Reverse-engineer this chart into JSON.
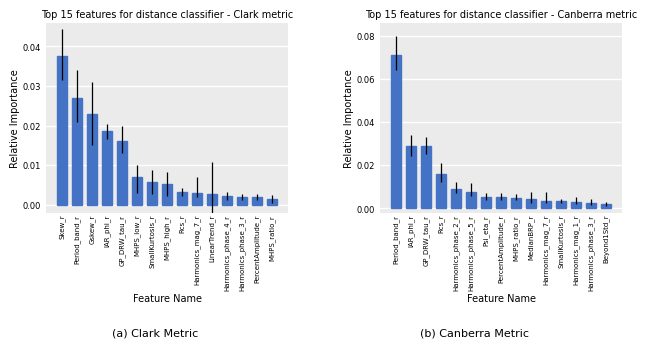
{
  "clark": {
    "title": "Top 15 features for distance classifier - Clark metric",
    "xlabel": "Feature Name",
    "ylabel": "Relative Importance",
    "categories": [
      "Skew_r",
      "Period_band_r",
      "Gskew_r",
      "IAR_phi_r",
      "GP_DRW_tau_r",
      "MHPS_low_r",
      "SmallKurtosis_r",
      "MHPS_high_r",
      "Rcs_r",
      "Harmonics_mag_7_r",
      "LinearTrend_r",
      "Harmonics_phase_4_r",
      "Harmonics_phase_3_r",
      "PercentAmplitude_r",
      "MHPS_ratio_r"
    ],
    "values": [
      0.0375,
      0.027,
      0.023,
      0.0185,
      0.016,
      0.007,
      0.0058,
      0.0052,
      0.0033,
      0.003,
      0.0028,
      0.0022,
      0.002,
      0.002,
      0.0015
    ],
    "yerr_lower": [
      0.006,
      0.006,
      0.008,
      0.002,
      0.003,
      0.004,
      0.003,
      0.003,
      0.001,
      0.001,
      0.009,
      0.001,
      0.0008,
      0.0008,
      0.001
    ],
    "yerr_upper": [
      0.007,
      0.007,
      0.008,
      0.002,
      0.004,
      0.003,
      0.003,
      0.003,
      0.001,
      0.004,
      0.008,
      0.001,
      0.0008,
      0.0008,
      0.001
    ],
    "ylim": [
      -0.002,
      0.046
    ],
    "yticks": [
      0.0,
      0.01,
      0.02,
      0.03,
      0.04
    ],
    "caption": "(a) Clark Metric"
  },
  "canberra": {
    "title": "Top 15 features for distance classifier - Canberra metric",
    "xlabel": "Feature Name",
    "ylabel": "Relative Importance",
    "categories": [
      "Period_band_r",
      "IAR_phi_r",
      "GP_DRW_tau_r",
      "Rcs_r",
      "Harmonics_phase_2_r",
      "Harmonics_phase_5_r",
      "Psi_eta_r",
      "PercentAmplitude_r",
      "MHPS_ratio_r",
      "MedianBRP_r",
      "Harmonics_mag_7_r",
      "SmallKurtosis_r",
      "Harmonics_mag_1_r",
      "Harmonics_phase_3_r",
      "Beyond1Std_r"
    ],
    "values": [
      0.071,
      0.029,
      0.029,
      0.016,
      0.009,
      0.0075,
      0.005,
      0.005,
      0.0048,
      0.0045,
      0.0035,
      0.0035,
      0.003,
      0.0025,
      0.002
    ],
    "yerr_lower": [
      0.007,
      0.005,
      0.004,
      0.004,
      0.002,
      0.002,
      0.001,
      0.001,
      0.001,
      0.002,
      0.001,
      0.001,
      0.001,
      0.001,
      0.001
    ],
    "yerr_upper": [
      0.009,
      0.005,
      0.004,
      0.005,
      0.003,
      0.004,
      0.002,
      0.002,
      0.002,
      0.003,
      0.004,
      0.001,
      0.002,
      0.002,
      0.001
    ],
    "ylim": [
      -0.002,
      0.086
    ],
    "yticks": [
      0.0,
      0.02,
      0.04,
      0.06,
      0.08
    ],
    "caption": "(b) Canberra Metric"
  },
  "bar_color": "#4472C4",
  "bar_edgecolor": "#4472C4",
  "error_color": "black",
  "bg_color": "#EBEBEB",
  "grid_color": "white",
  "fig_facecolor": "white",
  "title_fontsize": 7,
  "label_fontsize": 7,
  "tick_fontsize": 6,
  "xtick_fontsize": 5,
  "caption_fontsize": 8
}
